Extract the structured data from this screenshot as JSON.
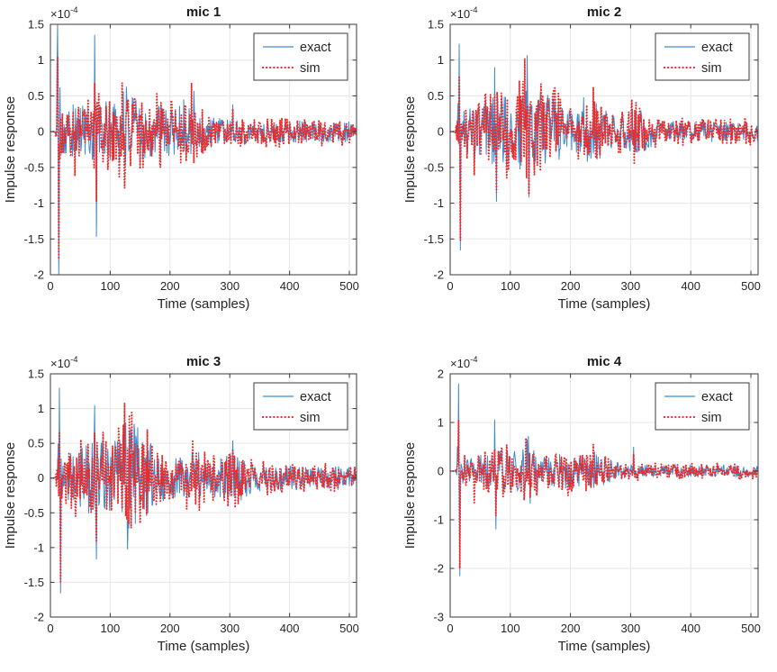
{
  "figure": {
    "background": "#ffffff",
    "note": "2x2 grid of impulse response plots, values in units of 1e-4"
  },
  "styles": {
    "exact_color": "#3E8BD0",
    "sim_color": "#EB2A2A",
    "grid_color": "#E6E6E6",
    "axis_color": "#3A3A3A",
    "text_color": "#262626",
    "legend_border": "#3A3A3A",
    "legend_bg": "#ffffff"
  },
  "chart_data": [
    {
      "type": "line",
      "title": "mic 1",
      "xlabel": "Time (samples)",
      "ylabel": "Impulse response",
      "scale_label_base": "×10",
      "scale_label_exp": "-4",
      "units": "1e-4",
      "xlim": [
        0,
        512
      ],
      "ylim": [
        -2,
        1.5
      ],
      "xticks": [
        0,
        100,
        200,
        300,
        400,
        500
      ],
      "xtick_labels": [
        "0",
        "100",
        "200",
        "300",
        "400",
        "500"
      ],
      "yticks": [
        1.5,
        1,
        0.5,
        0,
        -0.5,
        -1,
        -1.5,
        -2
      ],
      "ytick_labels": [
        "1.5",
        "1",
        "0.5",
        "0",
        "-0.5",
        "-1",
        "-1.5",
        "-2"
      ],
      "grid": true,
      "legend": {
        "position": "top-right",
        "entries": [
          "exact",
          "sim"
        ]
      },
      "noise": {
        "start": 0.36,
        "end": 0.14,
        "bursts": [
          [
            75,
            0.18
          ],
          [
            125,
            0.28
          ],
          [
            180,
            0.2
          ],
          [
            235,
            0.22
          ]
        ]
      },
      "series": [
        {
          "name": "exact",
          "style": "solid",
          "seed": 101,
          "spikes": [
            [
              11,
              0.9
            ],
            [
              12,
              1.5
            ],
            [
              14,
              -2.05
            ],
            [
              16,
              0.62
            ],
            [
              38,
              0.38
            ],
            [
              74,
              1.35
            ],
            [
              77,
              -1.47
            ],
            [
              99,
              0.37
            ],
            [
              122,
              0.56
            ],
            [
              127,
              0.63
            ],
            [
              150,
              -0.45
            ],
            [
              223,
              0.45
            ],
            [
              240,
              0.57
            ],
            [
              305,
              0.38
            ]
          ]
        },
        {
          "name": "sim",
          "style": "dotted",
          "seed": 202,
          "mix_exact": 0.65,
          "own": 0.75,
          "spikes": [
            [
              12,
              1.05
            ],
            [
              14,
              -1.78
            ],
            [
              38,
              0.28
            ],
            [
              41,
              -0.62
            ],
            [
              74,
              0.68
            ],
            [
              77,
              -0.98
            ],
            [
              120,
              0.68
            ],
            [
              124,
              -0.79
            ],
            [
              150,
              -0.52
            ],
            [
              178,
              0.53
            ],
            [
              183,
              -0.45
            ],
            [
              236,
              0.68
            ],
            [
              240,
              -0.44
            ],
            [
              305,
              0.32
            ]
          ]
        }
      ]
    },
    {
      "type": "line",
      "title": "mic 2",
      "xlabel": "Time (samples)",
      "ylabel": "Impulse response",
      "scale_label_base": "×10",
      "scale_label_exp": "-4",
      "units": "1e-4",
      "xlim": [
        0,
        512
      ],
      "ylim": [
        -2,
        1.5
      ],
      "xticks": [
        0,
        100,
        200,
        300,
        400,
        500
      ],
      "xtick_labels": [
        "0",
        "100",
        "200",
        "300",
        "400",
        "500"
      ],
      "yticks": [
        1.5,
        1,
        0.5,
        0,
        -0.5,
        -1,
        -1.5,
        -2
      ],
      "ytick_labels": [
        "1.5",
        "1",
        "0.5",
        "0",
        "-0.5",
        "-1",
        "-1.5",
        "-2"
      ],
      "grid": true,
      "legend": {
        "position": "top-right",
        "entries": [
          "exact",
          "sim"
        ]
      },
      "noise": {
        "start": 0.34,
        "end": 0.13,
        "bursts": [
          [
            75,
            0.25
          ],
          [
            128,
            0.38
          ],
          [
            170,
            0.24
          ],
          [
            240,
            0.22
          ],
          [
            305,
            0.18
          ]
        ]
      },
      "series": [
        {
          "name": "exact",
          "style": "solid",
          "seed": 303,
          "spikes": [
            [
              13,
              0.4
            ],
            [
              15,
              1.23
            ],
            [
              17,
              -1.66
            ],
            [
              40,
              -0.45
            ],
            [
              74,
              0.9
            ],
            [
              77,
              -0.98
            ],
            [
              126,
              0.57
            ],
            [
              128,
              1.07
            ],
            [
              131,
              -0.92
            ],
            [
              150,
              0.56
            ],
            [
              222,
              0.48
            ],
            [
              228,
              -0.42
            ],
            [
              240,
              0.4
            ]
          ]
        },
        {
          "name": "sim",
          "style": "dotted",
          "seed": 404,
          "mix_exact": 0.65,
          "own": 0.75,
          "spikes": [
            [
              15,
              0.78
            ],
            [
              17,
              -1.52
            ],
            [
              40,
              -0.61
            ],
            [
              74,
              0.52
            ],
            [
              77,
              -0.85
            ],
            [
              112,
              0.5
            ],
            [
              124,
              1.02
            ],
            [
              127,
              -0.65
            ],
            [
              131,
              -0.88
            ],
            [
              150,
              -0.55
            ],
            [
              172,
              0.57
            ],
            [
              183,
              0.45
            ],
            [
              238,
              0.62
            ],
            [
              242,
              -0.35
            ],
            [
              302,
              0.45
            ],
            [
              306,
              -0.44
            ]
          ]
        }
      ]
    },
    {
      "type": "line",
      "title": "mic 3",
      "xlabel": "Time (samples)",
      "ylabel": "Impulse response",
      "scale_label_base": "×10",
      "scale_label_exp": "-4",
      "units": "1e-4",
      "xlim": [
        0,
        512
      ],
      "ylim": [
        -2,
        1.5
      ],
      "xticks": [
        0,
        100,
        200,
        300,
        400,
        500
      ],
      "xtick_labels": [
        "0",
        "100",
        "200",
        "300",
        "400",
        "500"
      ],
      "yticks": [
        1.5,
        1,
        0.5,
        0,
        -0.5,
        -1,
        -1.5,
        -2
      ],
      "ytick_labels": [
        "1.5",
        "1",
        "0.5",
        "0",
        "-0.5",
        "-1",
        "-1.5",
        "-2"
      ],
      "grid": true,
      "legend": {
        "position": "top-right",
        "entries": [
          "exact",
          "sim"
        ]
      },
      "noise": {
        "start": 0.38,
        "end": 0.16,
        "bursts": [
          [
            75,
            0.26
          ],
          [
            128,
            0.42
          ],
          [
            160,
            0.28
          ],
          [
            240,
            0.18
          ],
          [
            305,
            0.18
          ]
        ]
      },
      "series": [
        {
          "name": "exact",
          "style": "solid",
          "seed": 505,
          "spikes": [
            [
              13,
              0.5
            ],
            [
              15,
              1.3
            ],
            [
              17,
              -1.66
            ],
            [
              74,
              1.05
            ],
            [
              77,
              -1.17
            ],
            [
              112,
              0.53
            ],
            [
              126,
              0.8
            ],
            [
              129,
              -1.03
            ],
            [
              140,
              0.78
            ],
            [
              146,
              0.73
            ],
            [
              168,
              0.5
            ],
            [
              305,
              0.54
            ]
          ]
        },
        {
          "name": "sim",
          "style": "dotted",
          "seed": 606,
          "mix_exact": 0.65,
          "own": 0.75,
          "spikes": [
            [
              15,
              0.65
            ],
            [
              17,
              -1.49
            ],
            [
              42,
              -0.55
            ],
            [
              74,
              0.65
            ],
            [
              77,
              -0.92
            ],
            [
              118,
              0.5
            ],
            [
              124,
              1.08
            ],
            [
              128,
              -0.6
            ],
            [
              135,
              -0.72
            ],
            [
              150,
              -0.65
            ],
            [
              170,
              0.47
            ],
            [
              238,
              0.53
            ],
            [
              305,
              0.4
            ]
          ]
        }
      ]
    },
    {
      "type": "line",
      "title": "mic 4",
      "xlabel": "Time (samples)",
      "ylabel": "Impulse response",
      "scale_label_base": "×10",
      "scale_label_exp": "-4",
      "units": "1e-4",
      "xlim": [
        0,
        512
      ],
      "ylim": [
        -3,
        2
      ],
      "xticks": [
        0,
        100,
        200,
        300,
        400,
        500
      ],
      "xtick_labels": [
        "0",
        "100",
        "200",
        "300",
        "400",
        "500"
      ],
      "yticks": [
        2,
        1,
        0,
        -1,
        -2,
        -3
      ],
      "ytick_labels": [
        "2",
        "1",
        "0",
        "-1",
        "-2",
        "-3"
      ],
      "grid": true,
      "legend": {
        "position": "top-right",
        "entries": [
          "exact",
          "sim"
        ]
      },
      "noise": {
        "start": 0.32,
        "end": 0.12,
        "bursts": [
          [
            75,
            0.22
          ],
          [
            130,
            0.26
          ],
          [
            190,
            0.18
          ],
          [
            240,
            0.2
          ]
        ]
      },
      "series": [
        {
          "name": "exact",
          "style": "solid",
          "seed": 707,
          "spikes": [
            [
              12,
              0.5
            ],
            [
              14,
              1.8
            ],
            [
              16,
              -2.16
            ],
            [
              74,
              1.06
            ],
            [
              76,
              -1.2
            ],
            [
              128,
              0.65
            ],
            [
              130,
              0.72
            ],
            [
              133,
              -0.67
            ],
            [
              240,
              0.4
            ],
            [
              305,
              0.5
            ]
          ]
        },
        {
          "name": "sim",
          "style": "dotted",
          "seed": 808,
          "mix_exact": 0.65,
          "own": 0.75,
          "spikes": [
            [
              14,
              1.05
            ],
            [
              16,
              -2.0
            ],
            [
              40,
              -0.65
            ],
            [
              74,
              0.45
            ],
            [
              76,
              -0.92
            ],
            [
              126,
              0.68
            ],
            [
              133,
              -0.55
            ],
            [
              196,
              -0.5
            ],
            [
              238,
              0.55
            ],
            [
              305,
              0.35
            ]
          ]
        }
      ]
    }
  ]
}
